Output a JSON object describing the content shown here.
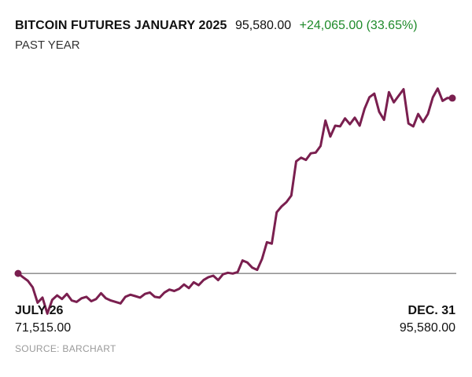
{
  "header": {
    "title": "BITCOIN FUTURES JANUARY 2025",
    "price": "95,580.00",
    "change": "+24,065.00 (33.65%)",
    "subtitle": "PAST YEAR"
  },
  "footer": {
    "start_label": "JULY 26",
    "start_value": "71,515.00",
    "end_label": "DEC. 31",
    "end_value": "95,580.00",
    "source": "SOURCE: BARCHART"
  },
  "colors": {
    "line": "#7a1f4f",
    "change": "#1e8a2a",
    "baseline": "#555555"
  },
  "chart_data": {
    "type": "line",
    "baseline": 71515,
    "ylim": [
      67000,
      101500
    ],
    "x_range": [
      "2024-07-26",
      "2024-12-31"
    ],
    "series": [
      {
        "values": [
          71515,
          71000,
          70500,
          69600,
          67500,
          68200,
          66000,
          67900,
          68500,
          68000,
          68700,
          67800,
          67600,
          68100,
          68300,
          67700,
          68000,
          68800,
          68100,
          67800,
          67600,
          67400,
          68300,
          68600,
          68400,
          68200,
          68700,
          68900,
          68300,
          68200,
          68900,
          69300,
          69100,
          69400,
          70000,
          69500,
          70300,
          69900,
          70600,
          71000,
          71200,
          70600,
          71400,
          71600,
          71500,
          71700,
          73300,
          73000,
          72300,
          72000,
          73500,
          75800,
          75600,
          79900,
          80700,
          81300,
          82200,
          86900,
          87400,
          87100,
          88000,
          88100,
          89000,
          92500,
          90300,
          91800,
          91700,
          92800,
          92000,
          92900,
          91800,
          94100,
          95700,
          96200,
          93700,
          92600,
          96400,
          95000,
          95900,
          96800,
          92100,
          91700,
          93400,
          92300,
          93400,
          95680,
          96900,
          95200,
          95600,
          95580
        ]
      }
    ]
  }
}
